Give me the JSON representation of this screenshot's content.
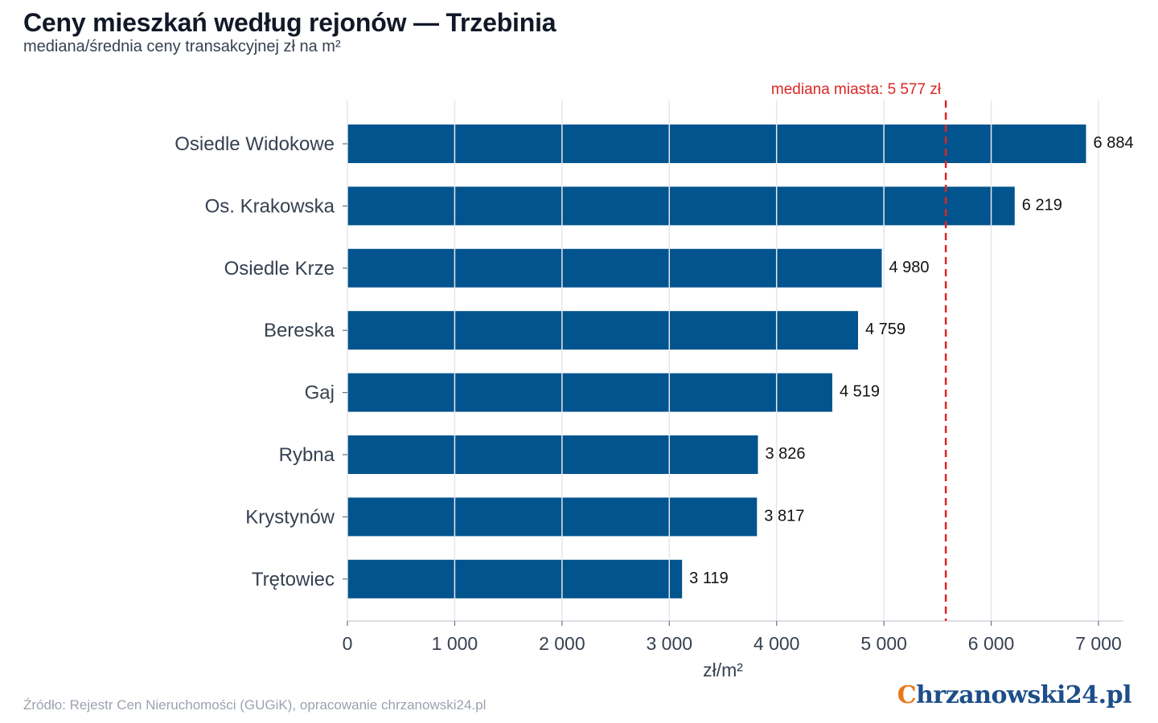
{
  "header": {
    "title": "Ceny mieszkań według rejonów — Trzebinia",
    "subtitle": "mediana/średnia ceny transakcyjnej zł na m²"
  },
  "footer": {
    "source": "Źródło: Rejestr Cen Nieruchomości (GUGiK), opracowanie chrzanowski24.pl",
    "logo_initial": "C",
    "logo_rest": "hrzanowski24.pl"
  },
  "colors": {
    "bar": "#02548e",
    "median_line": "#dc2626",
    "grid": "#e5e7eb",
    "logo_initial": "#e97817",
    "logo_text": "#1d4e89"
  },
  "chart_data": {
    "type": "bar",
    "orientation": "horizontal",
    "categories": [
      "Osiedle Widokowe",
      "Os. Krakowska",
      "Osiedle Krze",
      "Bereska",
      "Gaj",
      "Rybna",
      "Krystynów",
      "Trętowiec"
    ],
    "values": [
      6884,
      6219,
      4980,
      4759,
      4519,
      3826,
      3817,
      3119
    ],
    "value_labels": [
      "6 884",
      "6 219",
      "4 980",
      "4 759",
      "4 519",
      "3 826",
      "3 817",
      "3 119"
    ],
    "xlabel": "zł/m²",
    "xlim": [
      0,
      7000
    ],
    "xticks": [
      0,
      1000,
      2000,
      3000,
      4000,
      5000,
      6000,
      7000
    ],
    "xtick_labels": [
      "0",
      "1 000",
      "2 000",
      "3 000",
      "4 000",
      "5 000",
      "6 000",
      "7 000"
    ],
    "reference_line": {
      "value": 5577,
      "label": "mediana miasta: 5 577 zł"
    },
    "grid": "vertical"
  }
}
